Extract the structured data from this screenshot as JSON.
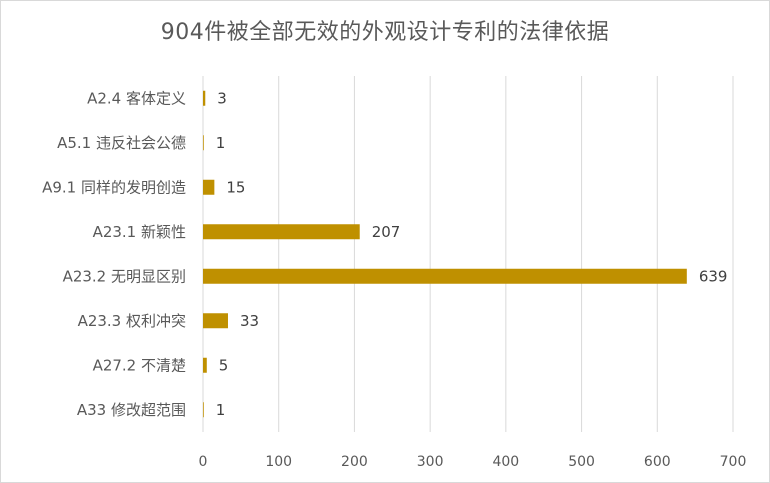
{
  "chart_data": {
    "type": "bar",
    "orientation": "horizontal",
    "title": "904件被全部无效的外观设计专利的法律依据",
    "categories": [
      "A2.4 客体定义",
      "A5.1 违反社会公德",
      "A9.1 同样的发明创造",
      "A23.1 新颖性",
      "A23.2 无明显区别",
      "A23.3 权利冲突",
      "A27.2 不清楚",
      "A33 修改超范围"
    ],
    "values": [
      3,
      1,
      15,
      207,
      639,
      33,
      5,
      1
    ],
    "xlim": [
      0,
      700
    ],
    "xticks": [
      0,
      100,
      200,
      300,
      400,
      500,
      600,
      700
    ],
    "grid": true,
    "legend": "none",
    "bar_color": "#bf9000",
    "data_labels": true
  }
}
